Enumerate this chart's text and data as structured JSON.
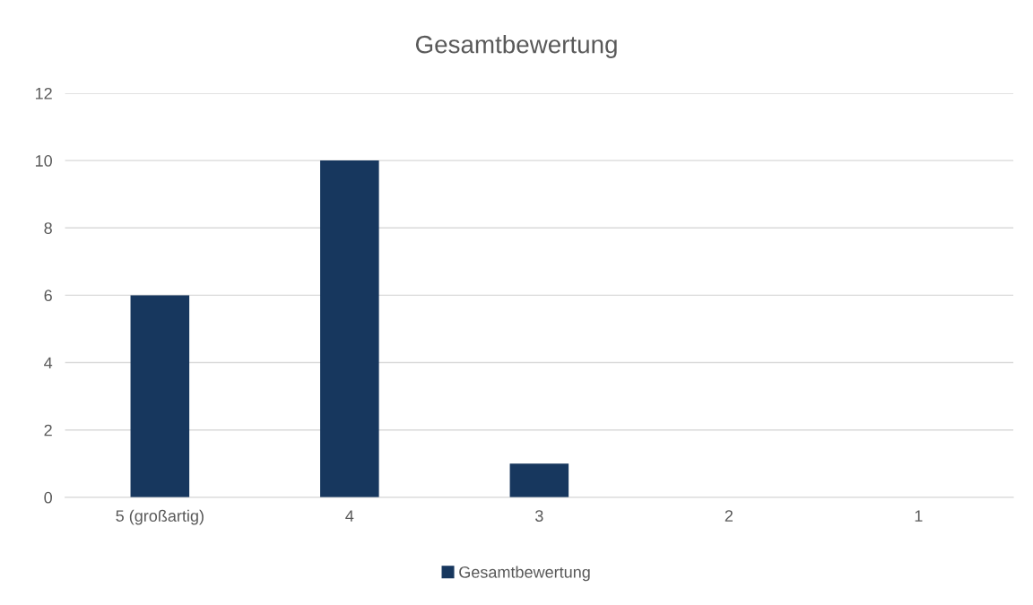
{
  "chart_data": {
    "type": "bar",
    "title": "Gesamtbewertung",
    "categories": [
      "5 (großartig)",
      "4",
      "3",
      "2",
      "1"
    ],
    "series": [
      {
        "name": "Gesamtbewertung",
        "color": "#17375e",
        "values": [
          6,
          10,
          1,
          0,
          0
        ]
      }
    ],
    "ylim": [
      0,
      12
    ],
    "yticks": [
      0,
      2,
      4,
      6,
      8,
      10,
      12
    ],
    "grid": "y",
    "legend": "bottom"
  }
}
